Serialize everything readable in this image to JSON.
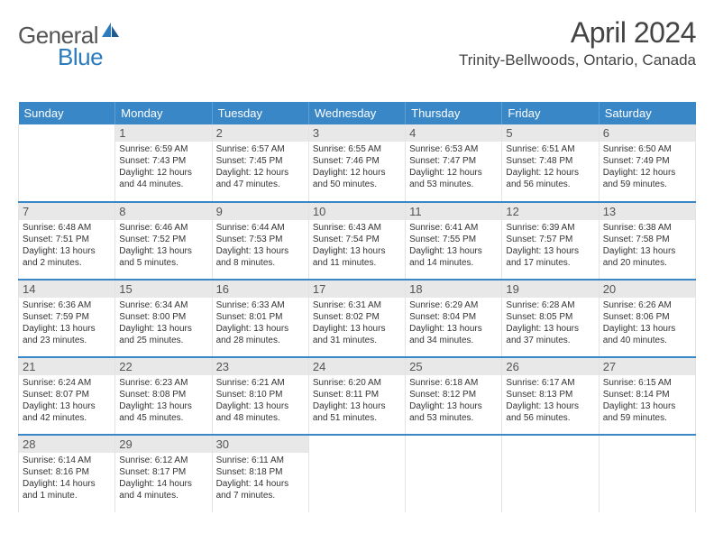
{
  "logo": {
    "general": "General",
    "blue": "Blue"
  },
  "header": {
    "month_year": "April 2024",
    "location": "Trinity-Bellwoods, Ontario, Canada"
  },
  "colors": {
    "header_bg": "#3a87c8",
    "header_text": "#ffffff",
    "daynum_bg": "#e8e8e8",
    "border": "#e3e3e3",
    "logo_gray": "#555555",
    "logo_blue": "#2b7bbf"
  },
  "day_headers": [
    "Sunday",
    "Monday",
    "Tuesday",
    "Wednesday",
    "Thursday",
    "Friday",
    "Saturday"
  ],
  "weeks": [
    [
      null,
      {
        "n": "1",
        "sr": "Sunrise: 6:59 AM",
        "ss": "Sunset: 7:43 PM",
        "dl1": "Daylight: 12 hours",
        "dl2": "and 44 minutes."
      },
      {
        "n": "2",
        "sr": "Sunrise: 6:57 AM",
        "ss": "Sunset: 7:45 PM",
        "dl1": "Daylight: 12 hours",
        "dl2": "and 47 minutes."
      },
      {
        "n": "3",
        "sr": "Sunrise: 6:55 AM",
        "ss": "Sunset: 7:46 PM",
        "dl1": "Daylight: 12 hours",
        "dl2": "and 50 minutes."
      },
      {
        "n": "4",
        "sr": "Sunrise: 6:53 AM",
        "ss": "Sunset: 7:47 PM",
        "dl1": "Daylight: 12 hours",
        "dl2": "and 53 minutes."
      },
      {
        "n": "5",
        "sr": "Sunrise: 6:51 AM",
        "ss": "Sunset: 7:48 PM",
        "dl1": "Daylight: 12 hours",
        "dl2": "and 56 minutes."
      },
      {
        "n": "6",
        "sr": "Sunrise: 6:50 AM",
        "ss": "Sunset: 7:49 PM",
        "dl1": "Daylight: 12 hours",
        "dl2": "and 59 minutes."
      }
    ],
    [
      {
        "n": "7",
        "sr": "Sunrise: 6:48 AM",
        "ss": "Sunset: 7:51 PM",
        "dl1": "Daylight: 13 hours",
        "dl2": "and 2 minutes."
      },
      {
        "n": "8",
        "sr": "Sunrise: 6:46 AM",
        "ss": "Sunset: 7:52 PM",
        "dl1": "Daylight: 13 hours",
        "dl2": "and 5 minutes."
      },
      {
        "n": "9",
        "sr": "Sunrise: 6:44 AM",
        "ss": "Sunset: 7:53 PM",
        "dl1": "Daylight: 13 hours",
        "dl2": "and 8 minutes."
      },
      {
        "n": "10",
        "sr": "Sunrise: 6:43 AM",
        "ss": "Sunset: 7:54 PM",
        "dl1": "Daylight: 13 hours",
        "dl2": "and 11 minutes."
      },
      {
        "n": "11",
        "sr": "Sunrise: 6:41 AM",
        "ss": "Sunset: 7:55 PM",
        "dl1": "Daylight: 13 hours",
        "dl2": "and 14 minutes."
      },
      {
        "n": "12",
        "sr": "Sunrise: 6:39 AM",
        "ss": "Sunset: 7:57 PM",
        "dl1": "Daylight: 13 hours",
        "dl2": "and 17 minutes."
      },
      {
        "n": "13",
        "sr": "Sunrise: 6:38 AM",
        "ss": "Sunset: 7:58 PM",
        "dl1": "Daylight: 13 hours",
        "dl2": "and 20 minutes."
      }
    ],
    [
      {
        "n": "14",
        "sr": "Sunrise: 6:36 AM",
        "ss": "Sunset: 7:59 PM",
        "dl1": "Daylight: 13 hours",
        "dl2": "and 23 minutes."
      },
      {
        "n": "15",
        "sr": "Sunrise: 6:34 AM",
        "ss": "Sunset: 8:00 PM",
        "dl1": "Daylight: 13 hours",
        "dl2": "and 25 minutes."
      },
      {
        "n": "16",
        "sr": "Sunrise: 6:33 AM",
        "ss": "Sunset: 8:01 PM",
        "dl1": "Daylight: 13 hours",
        "dl2": "and 28 minutes."
      },
      {
        "n": "17",
        "sr": "Sunrise: 6:31 AM",
        "ss": "Sunset: 8:02 PM",
        "dl1": "Daylight: 13 hours",
        "dl2": "and 31 minutes."
      },
      {
        "n": "18",
        "sr": "Sunrise: 6:29 AM",
        "ss": "Sunset: 8:04 PM",
        "dl1": "Daylight: 13 hours",
        "dl2": "and 34 minutes."
      },
      {
        "n": "19",
        "sr": "Sunrise: 6:28 AM",
        "ss": "Sunset: 8:05 PM",
        "dl1": "Daylight: 13 hours",
        "dl2": "and 37 minutes."
      },
      {
        "n": "20",
        "sr": "Sunrise: 6:26 AM",
        "ss": "Sunset: 8:06 PM",
        "dl1": "Daylight: 13 hours",
        "dl2": "and 40 minutes."
      }
    ],
    [
      {
        "n": "21",
        "sr": "Sunrise: 6:24 AM",
        "ss": "Sunset: 8:07 PM",
        "dl1": "Daylight: 13 hours",
        "dl2": "and 42 minutes."
      },
      {
        "n": "22",
        "sr": "Sunrise: 6:23 AM",
        "ss": "Sunset: 8:08 PM",
        "dl1": "Daylight: 13 hours",
        "dl2": "and 45 minutes."
      },
      {
        "n": "23",
        "sr": "Sunrise: 6:21 AM",
        "ss": "Sunset: 8:10 PM",
        "dl1": "Daylight: 13 hours",
        "dl2": "and 48 minutes."
      },
      {
        "n": "24",
        "sr": "Sunrise: 6:20 AM",
        "ss": "Sunset: 8:11 PM",
        "dl1": "Daylight: 13 hours",
        "dl2": "and 51 minutes."
      },
      {
        "n": "25",
        "sr": "Sunrise: 6:18 AM",
        "ss": "Sunset: 8:12 PM",
        "dl1": "Daylight: 13 hours",
        "dl2": "and 53 minutes."
      },
      {
        "n": "26",
        "sr": "Sunrise: 6:17 AM",
        "ss": "Sunset: 8:13 PM",
        "dl1": "Daylight: 13 hours",
        "dl2": "and 56 minutes."
      },
      {
        "n": "27",
        "sr": "Sunrise: 6:15 AM",
        "ss": "Sunset: 8:14 PM",
        "dl1": "Daylight: 13 hours",
        "dl2": "and 59 minutes."
      }
    ],
    [
      {
        "n": "28",
        "sr": "Sunrise: 6:14 AM",
        "ss": "Sunset: 8:16 PM",
        "dl1": "Daylight: 14 hours",
        "dl2": "and 1 minute."
      },
      {
        "n": "29",
        "sr": "Sunrise: 6:12 AM",
        "ss": "Sunset: 8:17 PM",
        "dl1": "Daylight: 14 hours",
        "dl2": "and 4 minutes."
      },
      {
        "n": "30",
        "sr": "Sunrise: 6:11 AM",
        "ss": "Sunset: 8:18 PM",
        "dl1": "Daylight: 14 hours",
        "dl2": "and 7 minutes."
      },
      null,
      null,
      null,
      null
    ]
  ]
}
